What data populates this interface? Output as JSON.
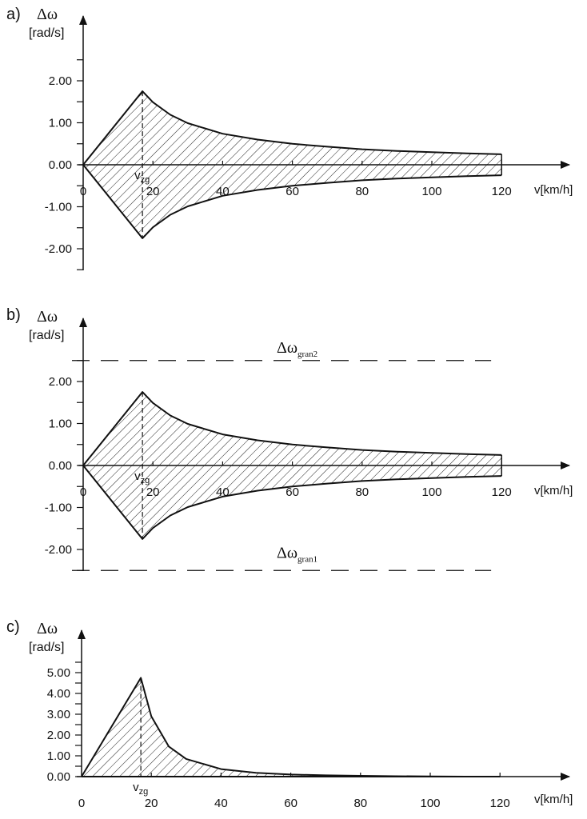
{
  "chart_data": [
    {
      "panel_label": "a)",
      "type": "area",
      "ylabel_symbol": "Δω",
      "ylabel_unit": "[rad/s]",
      "xlabel": "v[km/h]",
      "x_ticks": [
        "0",
        "20",
        "40",
        "60",
        "80",
        "100",
        "120"
      ],
      "y_ticks": [
        "2.00",
        "1.00",
        "0.00",
        "-1.00",
        "-2.00"
      ],
      "y_tick_values": [
        2,
        1,
        0,
        -1,
        -2
      ],
      "ylim": [
        -2.5,
        3.4
      ],
      "xlim": [
        0,
        138
      ],
      "vzg_label": "v",
      "vzg_sub": "zg",
      "vzg_value": 17,
      "hatched": true,
      "series": [
        {
          "x": [
            0,
            17,
            20,
            25,
            30,
            40,
            50,
            60,
            70,
            80,
            90,
            100,
            110,
            120
          ],
          "values": [
            0,
            1.75,
            1.49,
            1.19,
            0.99,
            0.74,
            0.6,
            0.5,
            0.43,
            0.37,
            0.33,
            0.3,
            0.27,
            0.25
          ]
        },
        {
          "x": [
            0,
            17,
            20,
            25,
            30,
            40,
            50,
            60,
            70,
            80,
            90,
            100,
            110,
            120
          ],
          "values": [
            0,
            -1.75,
            -1.49,
            -1.19,
            -0.99,
            -0.74,
            -0.6,
            -0.5,
            -0.43,
            -0.37,
            -0.33,
            -0.3,
            -0.27,
            -0.25
          ]
        }
      ]
    },
    {
      "panel_label": "b)",
      "type": "area",
      "ylabel_symbol": "Δω",
      "ylabel_unit": "[rad/s]",
      "xlabel": "v[km/h]",
      "x_ticks": [
        "0",
        "20",
        "40",
        "60",
        "80",
        "100",
        "120"
      ],
      "y_ticks": [
        "2.00",
        "1.00",
        "0.00",
        "-1.00",
        "-2.00"
      ],
      "y_tick_values": [
        2,
        1,
        0,
        -1,
        -2
      ],
      "ylim": [
        -2.5,
        3.4
      ],
      "xlim": [
        0,
        138
      ],
      "vzg_label": "v",
      "vzg_sub": "zg",
      "vzg_value": 17,
      "hatched": true,
      "limits": [
        {
          "symbol": "Δω",
          "sub": "gran2",
          "value": 2.5
        },
        {
          "symbol": "Δω",
          "sub": "gran1",
          "value": -2.5
        }
      ],
      "limit_x_range": [
        0,
        117
      ],
      "series": [
        {
          "x": [
            0,
            17,
            20,
            25,
            30,
            40,
            50,
            60,
            70,
            80,
            90,
            100,
            110,
            120
          ],
          "values": [
            0,
            1.75,
            1.49,
            1.19,
            0.99,
            0.74,
            0.6,
            0.5,
            0.43,
            0.37,
            0.33,
            0.3,
            0.27,
            0.25
          ]
        },
        {
          "x": [
            0,
            17,
            20,
            25,
            30,
            40,
            50,
            60,
            70,
            80,
            90,
            100,
            110,
            120
          ],
          "values": [
            0,
            -1.75,
            -1.49,
            -1.19,
            -0.99,
            -0.74,
            -0.6,
            -0.5,
            -0.43,
            -0.37,
            -0.33,
            -0.3,
            -0.27,
            -0.25
          ]
        }
      ]
    },
    {
      "panel_label": "c)",
      "type": "area",
      "ylabel_symbol": "Δω",
      "ylabel_unit": "[rad/s]",
      "xlabel": "v[km/h]",
      "x_ticks": [
        "0",
        "20",
        "40",
        "60",
        "80",
        "100",
        "120"
      ],
      "y_ticks": [
        "5.00",
        "4.00",
        "3.00",
        "2.00",
        "1.00",
        "0.00"
      ],
      "y_tick_values": [
        5,
        4,
        3,
        2,
        1,
        0
      ],
      "ylim": [
        0,
        6.8
      ],
      "xlim": [
        0,
        138
      ],
      "vzg_label": "v",
      "vzg_sub": "zg",
      "vzg_value": 17,
      "hatched": true,
      "series": [
        {
          "x": [
            0,
            17,
            20,
            25,
            30,
            40,
            50,
            60,
            70,
            80,
            90,
            100,
            110,
            120
          ],
          "values": [
            0,
            4.75,
            2.9,
            1.45,
            0.85,
            0.36,
            0.18,
            0.1,
            0.06,
            0.04,
            0.02,
            0.01,
            0.0,
            0.0
          ]
        },
        {
          "x": [
            0,
            120
          ],
          "values": [
            0,
            0
          ]
        }
      ]
    }
  ]
}
